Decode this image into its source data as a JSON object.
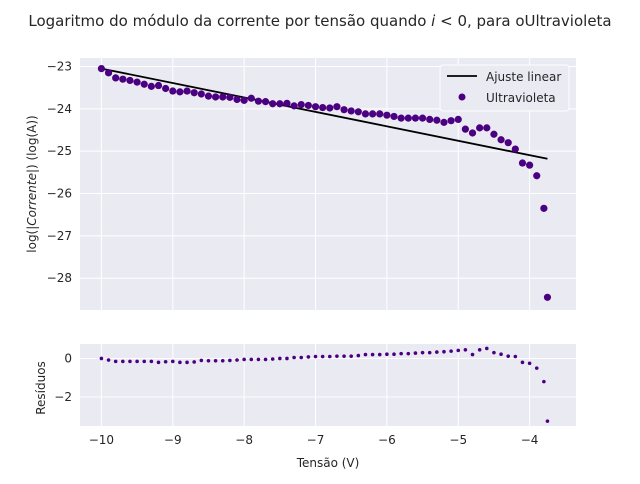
{
  "chart_data": [
    {
      "type": "line+scatter",
      "title_main": "Logaritmo do módulo da corrente por tensão quando ",
      "title_math": "i",
      "title_rest": " < 0, para oUltravioleta",
      "ylabel_prefix": "log(|",
      "ylabel_math": "Corrente",
      "ylabel_suffix": "|) (log(A))",
      "xlim": [
        -10.3,
        -3.35
      ],
      "ylim": [
        -28.75,
        -22.8
      ],
      "xticks": [
        -10,
        -9,
        -8,
        -7,
        -6,
        -5,
        -4
      ],
      "yticks": [
        -28,
        -27,
        -26,
        -25,
        -24,
        -23
      ],
      "ytick_labels": [
        "−28",
        "−27",
        "−26",
        "−25",
        "−24",
        "−23"
      ],
      "grid": true,
      "legend_position": "top-right",
      "colors": {
        "data": "#4b0082",
        "fit": "#000000",
        "plot_bg": "#eaeaf2",
        "grid": "#ffffff"
      },
      "series": [
        {
          "name": "Ajuste linear",
          "kind": "line",
          "x": [
            -10.0,
            -3.75
          ],
          "y": [
            -23.05,
            -25.18
          ]
        },
        {
          "name": "Ultravioleta",
          "kind": "scatter",
          "x": [
            -10.0,
            -9.9,
            -9.8,
            -9.7,
            -9.6,
            -9.5,
            -9.4,
            -9.3,
            -9.2,
            -9.1,
            -9.0,
            -8.9,
            -8.8,
            -8.7,
            -8.6,
            -8.5,
            -8.4,
            -8.3,
            -8.2,
            -8.1,
            -8.0,
            -7.9,
            -7.8,
            -7.7,
            -7.6,
            -7.5,
            -7.4,
            -7.3,
            -7.2,
            -7.1,
            -7.0,
            -6.9,
            -6.8,
            -6.7,
            -6.6,
            -6.5,
            -6.4,
            -6.3,
            -6.2,
            -6.1,
            -6.0,
            -5.9,
            -5.8,
            -5.7,
            -5.6,
            -5.5,
            -5.4,
            -5.3,
            -5.2,
            -5.1,
            -5.0,
            -4.9,
            -4.8,
            -4.7,
            -4.6,
            -4.5,
            -4.4,
            -4.3,
            -4.2,
            -4.1,
            -4.0,
            -3.9,
            -3.8,
            -3.75
          ],
          "y": [
            -23.05,
            -23.15,
            -23.27,
            -23.3,
            -23.33,
            -23.37,
            -23.42,
            -23.47,
            -23.45,
            -23.52,
            -23.58,
            -23.6,
            -23.58,
            -23.62,
            -23.65,
            -23.7,
            -23.72,
            -23.72,
            -23.73,
            -23.78,
            -23.8,
            -23.75,
            -23.82,
            -23.83,
            -23.88,
            -23.88,
            -23.87,
            -23.93,
            -23.9,
            -23.92,
            -23.95,
            -23.97,
            -23.98,
            -23.95,
            -24.02,
            -24.05,
            -24.07,
            -24.12,
            -24.12,
            -24.12,
            -24.15,
            -24.18,
            -24.22,
            -24.22,
            -24.22,
            -24.22,
            -24.25,
            -24.27,
            -24.32,
            -24.28,
            -24.25,
            -24.48,
            -24.57,
            -24.45,
            -24.45,
            -24.6,
            -24.73,
            -24.8,
            -24.95,
            -25.28,
            -25.33,
            -25.58,
            -26.35,
            -28.45
          ]
        }
      ]
    },
    {
      "type": "scatter",
      "ylabel": "Resíduos",
      "xlabel": "Tensão (V)",
      "xlim": [
        -10.3,
        -3.35
      ],
      "ylim": [
        -3.5,
        0.75
      ],
      "xticks": [
        -10,
        -9,
        -8,
        -7,
        -6,
        -5,
        -4
      ],
      "xtick_labels": [
        "−10",
        "−9",
        "−8",
        "−7",
        "−6",
        "−5",
        "−4"
      ],
      "yticks": [
        0,
        -2
      ],
      "ytick_labels": [
        "0",
        "−2"
      ],
      "grid": true,
      "colors": {
        "data": "#4b0082",
        "plot_bg": "#eaeaf2",
        "grid": "#ffffff"
      },
      "x": [
        -10.0,
        -9.9,
        -9.8,
        -9.7,
        -9.6,
        -9.5,
        -9.4,
        -9.3,
        -9.2,
        -9.1,
        -9.0,
        -8.9,
        -8.8,
        -8.7,
        -8.6,
        -8.5,
        -8.4,
        -8.3,
        -8.2,
        -8.1,
        -8.0,
        -7.9,
        -7.8,
        -7.7,
        -7.6,
        -7.5,
        -7.4,
        -7.3,
        -7.2,
        -7.1,
        -7.0,
        -6.9,
        -6.8,
        -6.7,
        -6.6,
        -6.5,
        -6.4,
        -6.3,
        -6.2,
        -6.1,
        -6.0,
        -5.9,
        -5.8,
        -5.7,
        -5.6,
        -5.5,
        -5.4,
        -5.3,
        -5.2,
        -5.1,
        -5.0,
        -4.9,
        -4.8,
        -4.7,
        -4.6,
        -4.5,
        -4.4,
        -4.3,
        -4.2,
        -4.1,
        -4.0,
        -3.9,
        -3.8,
        -3.75
      ],
      "y": [
        0.0,
        -0.08,
        -0.15,
        -0.15,
        -0.15,
        -0.15,
        -0.15,
        -0.15,
        -0.2,
        -0.17,
        -0.15,
        -0.2,
        -0.2,
        -0.18,
        -0.1,
        -0.12,
        -0.12,
        -0.12,
        -0.1,
        -0.08,
        -0.05,
        -0.05,
        -0.05,
        -0.05,
        -0.03,
        0.0,
        0.0,
        0.05,
        0.05,
        0.08,
        0.1,
        0.1,
        0.1,
        0.12,
        0.12,
        0.12,
        0.15,
        0.2,
        0.2,
        0.2,
        0.22,
        0.22,
        0.25,
        0.25,
        0.28,
        0.3,
        0.3,
        0.33,
        0.35,
        0.38,
        0.42,
        0.45,
        0.2,
        0.45,
        0.52,
        0.3,
        0.22,
        0.12,
        0.1,
        -0.2,
        -0.25,
        -0.5,
        -1.2,
        -3.25
      ]
    }
  ]
}
